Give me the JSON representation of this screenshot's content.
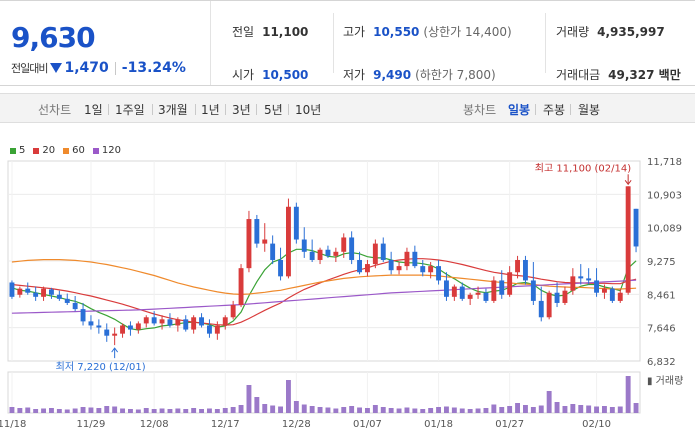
{
  "summary": {
    "price": "9,630",
    "change_label": "전일대비",
    "change_value": "1,470",
    "change_pct": "-13.24%",
    "prev_close_label": "전일",
    "prev_close": "11,100",
    "high_label": "고가",
    "high": "10,550",
    "high_note": "(상한가 14,400)",
    "volume_label": "거래량",
    "volume": "4,935,997",
    "open_label": "시가",
    "open": "10,500",
    "low_label": "저가",
    "low": "9,490",
    "low_note": "(하한가 7,800)",
    "amount_label": "거래대금",
    "amount": "49,327 백만"
  },
  "toolbar": {
    "line_label": "선차트",
    "periods": [
      "1일",
      "1주일",
      "3개월",
      "1년",
      "3년",
      "5년",
      "10년"
    ],
    "candle_label": "봉차트",
    "candle_periods": [
      "일봉",
      "주봉",
      "월봉"
    ],
    "active_candle": "일봉"
  },
  "legend": [
    {
      "label": "5",
      "color": "#3aa335"
    },
    {
      "label": "20",
      "color": "#d93b3b"
    },
    {
      "label": "60",
      "color": "#ef8a2c"
    },
    {
      "label": "120",
      "color": "#9b59c9"
    }
  ],
  "chart_data": {
    "type": "candlestick",
    "x_tick_labels": [
      "11/18",
      "11/29",
      "12/08",
      "12/17",
      "12/28",
      "01/07",
      "01/18",
      "01/27",
      "02/10"
    ],
    "y_ticks": [
      "11,718",
      "10,903",
      "10,089",
      "9,275",
      "8,461",
      "7,646",
      "6,832"
    ],
    "ylim": [
      6832,
      11718
    ],
    "up_color": "#d93b3b",
    "down_color": "#2a6fd6",
    "annotations": {
      "high": "최고 11,100 (02/14)",
      "low": "최저 7,220 (12/01)"
    },
    "volume_label": "거래량",
    "candles": [
      [
        8750,
        8800,
        8350,
        8400
      ],
      [
        8450,
        8650,
        8380,
        8600
      ],
      [
        8600,
        8750,
        8450,
        8500
      ],
      [
        8500,
        8650,
        8300,
        8400
      ],
      [
        8400,
        8650,
        8300,
        8600
      ],
      [
        8580,
        8620,
        8350,
        8450
      ],
      [
        8450,
        8550,
        8300,
        8350
      ],
      [
        8350,
        8480,
        8200,
        8250
      ],
      [
        8250,
        8420,
        8050,
        8100
      ],
      [
        8100,
        8250,
        7700,
        7800
      ],
      [
        7800,
        7950,
        7600,
        7700
      ],
      [
        7700,
        7850,
        7500,
        7650
      ],
      [
        7600,
        7750,
        7300,
        7450
      ],
      [
        7450,
        7650,
        7220,
        7500
      ],
      [
        7500,
        7750,
        7400,
        7700
      ],
      [
        7700,
        7800,
        7450,
        7600
      ],
      [
        7600,
        7800,
        7500,
        7750
      ],
      [
        7750,
        7950,
        7650,
        7900
      ],
      [
        7900,
        8050,
        7700,
        7750
      ],
      [
        7750,
        7950,
        7600,
        7850
      ],
      [
        7850,
        8000,
        7650,
        7700
      ],
      [
        7700,
        7900,
        7550,
        7850
      ],
      [
        7850,
        7950,
        7550,
        7600
      ],
      [
        7600,
        7950,
        7500,
        7900
      ],
      [
        7900,
        8000,
        7650,
        7700
      ],
      [
        7700,
        7850,
        7400,
        7500
      ],
      [
        7500,
        7800,
        7350,
        7700
      ],
      [
        7700,
        7950,
        7600,
        7900
      ],
      [
        7900,
        8300,
        7850,
        8200
      ],
      [
        8200,
        9200,
        8150,
        9100
      ],
      [
        9100,
        10500,
        9000,
        10300
      ],
      [
        10300,
        10400,
        9600,
        9700
      ],
      [
        9700,
        10200,
        9500,
        9800
      ],
      [
        9700,
        9900,
        9200,
        9300
      ],
      [
        9300,
        9600,
        8800,
        8900
      ],
      [
        8900,
        10800,
        8850,
        10600
      ],
      [
        10600,
        10700,
        9700,
        9800
      ],
      [
        9800,
        10100,
        9350,
        9500
      ],
      [
        9500,
        9800,
        9250,
        9300
      ],
      [
        9300,
        9600,
        9200,
        9550
      ],
      [
        9550,
        9650,
        9350,
        9400
      ],
      [
        9400,
        9600,
        9250,
        9500
      ],
      [
        9500,
        9950,
        9350,
        9850
      ],
      [
        9850,
        10000,
        9200,
        9300
      ],
      [
        9300,
        9500,
        8950,
        9000
      ],
      [
        9000,
        9300,
        8900,
        9200
      ],
      [
        9200,
        9800,
        9100,
        9700
      ],
      [
        9700,
        9850,
        9250,
        9300
      ],
      [
        9300,
        9500,
        8950,
        9050
      ],
      [
        9050,
        9250,
        8950,
        9150
      ],
      [
        9150,
        9600,
        9050,
        9500
      ],
      [
        9500,
        9650,
        9100,
        9150
      ],
      [
        9150,
        9300,
        8900,
        9000
      ],
      [
        9000,
        9250,
        8850,
        9150
      ],
      [
        9150,
        9300,
        8700,
        8800
      ],
      [
        8800,
        9000,
        8300,
        8400
      ],
      [
        8400,
        8700,
        8300,
        8650
      ],
      [
        8650,
        8750,
        8300,
        8350
      ],
      [
        8350,
        8500,
        8200,
        8450
      ],
      [
        8450,
        8650,
        8350,
        8500
      ],
      [
        8500,
        8600,
        8250,
        8300
      ],
      [
        8300,
        8900,
        8250,
        8800
      ],
      [
        8800,
        9050,
        8350,
        8450
      ],
      [
        8450,
        9150,
        8400,
        9000
      ],
      [
        9000,
        9400,
        8850,
        9300
      ],
      [
        9300,
        9400,
        8700,
        8800
      ],
      [
        8800,
        9250,
        8200,
        8300
      ],
      [
        8300,
        8650,
        7800,
        7900
      ],
      [
        7900,
        8550,
        7850,
        8500
      ],
      [
        8500,
        8750,
        8150,
        8250
      ],
      [
        8250,
        8650,
        8200,
        8550
      ],
      [
        8550,
        9100,
        8450,
        8900
      ],
      [
        8900,
        9200,
        8700,
        8850
      ],
      [
        8850,
        9100,
        8700,
        8800
      ],
      [
        8800,
        9100,
        8400,
        8500
      ],
      [
        8500,
        8700,
        8350,
        8600
      ],
      [
        8600,
        8650,
        8250,
        8300
      ],
      [
        8300,
        8600,
        8250,
        8500
      ],
      [
        8500,
        11100,
        8450,
        11100
      ],
      [
        10550,
        10550,
        9490,
        9630
      ]
    ],
    "ma_series": [
      {
        "label": "5",
        "color": "#3aa335",
        "values": [
          8620,
          8560,
          8540,
          8500,
          8460,
          8420,
          8380,
          8330,
          8290,
          8220,
          8110,
          8020,
          7940,
          7850,
          7730,
          7620,
          7590,
          7620,
          7640,
          7690,
          7710,
          7740,
          7770,
          7780,
          7760,
          7720,
          7660,
          7690,
          7810,
          8030,
          8430,
          8770,
          9060,
          9250,
          9320,
          9470,
          9560,
          9560,
          9530,
          9460,
          9390,
          9370,
          9450,
          9480,
          9450,
          9380,
          9350,
          9350,
          9300,
          9250,
          9230,
          9230,
          9210,
          9170,
          9080,
          8950,
          8840,
          8720,
          8610,
          8530,
          8500,
          8540,
          8560,
          8630,
          8730,
          8750,
          8700,
          8560,
          8470,
          8420,
          8440,
          8560,
          8660,
          8700,
          8700,
          8640,
          8600,
          8550,
          9100,
          9280
        ]
      },
      {
        "label": "20",
        "color": "#d93b3b",
        "values": [
          8700,
          8680,
          8660,
          8640,
          8620,
          8600,
          8570,
          8540,
          8500,
          8460,
          8420,
          8370,
          8320,
          8270,
          8220,
          8160,
          8100,
          8040,
          7980,
          7930,
          7880,
          7840,
          7810,
          7780,
          7760,
          7740,
          7720,
          7710,
          7720,
          7780,
          7870,
          7970,
          8070,
          8160,
          8250,
          8370,
          8480,
          8580,
          8660,
          8740,
          8810,
          8880,
          8950,
          9010,
          9060,
          9110,
          9170,
          9220,
          9270,
          9300,
          9320,
          9330,
          9330,
          9320,
          9300,
          9270,
          9230,
          9190,
          9140,
          9090,
          9040,
          9000,
          8970,
          8940,
          8920,
          8900,
          8870,
          8830,
          8800,
          8770,
          8750,
          8740,
          8740,
          8730,
          8730,
          8730,
          8720,
          8720,
          8790,
          8830
        ]
      },
      {
        "label": "60",
        "color": "#ef8a2c",
        "values": [
          9250,
          9270,
          9290,
          9300,
          9310,
          9310,
          9310,
          9300,
          9290,
          9270,
          9250,
          9220,
          9190,
          9150,
          9110,
          9070,
          9020,
          8970,
          8920,
          8860,
          8800,
          8740,
          8690,
          8640,
          8600,
          8560,
          8520,
          8490,
          8470,
          8460,
          8470,
          8490,
          8510,
          8540,
          8560,
          8600,
          8640,
          8680,
          8720,
          8760,
          8790,
          8820,
          8850,
          8870,
          8890,
          8900,
          8910,
          8920,
          8930,
          8930,
          8930,
          8930,
          8930,
          8920,
          8910,
          8890,
          8870,
          8850,
          8830,
          8810,
          8790,
          8770,
          8750,
          8740,
          8720,
          8710,
          8700,
          8680,
          8660,
          8650,
          8640,
          8630,
          8630,
          8620,
          8610,
          8600,
          8590,
          8590,
          8600,
          8610
        ]
      },
      {
        "label": "120",
        "color": "#9b59c9",
        "values": [
          8000,
          8005,
          8010,
          8015,
          8020,
          8025,
          8030,
          8035,
          8040,
          8045,
          8050,
          8055,
          8060,
          8065,
          8070,
          8075,
          8080,
          8090,
          8100,
          8110,
          8120,
          8130,
          8140,
          8150,
          8160,
          8170,
          8180,
          8190,
          8200,
          8210,
          8225,
          8240,
          8255,
          8270,
          8285,
          8300,
          8315,
          8330,
          8345,
          8360,
          8375,
          8390,
          8405,
          8420,
          8435,
          8450,
          8465,
          8480,
          8495,
          8505,
          8515,
          8525,
          8535,
          8545,
          8555,
          8565,
          8575,
          8585,
          8595,
          8605,
          8615,
          8625,
          8635,
          8645,
          8655,
          8665,
          8675,
          8685,
          8695,
          8705,
          8715,
          8725,
          8735,
          8745,
          8755,
          8765,
          8775,
          8785,
          8795,
          8805
        ]
      }
    ],
    "volumes": [
      60,
      50,
      55,
      40,
      45,
      50,
      40,
      35,
      45,
      60,
      55,
      50,
      70,
      65,
      45,
      40,
      35,
      50,
      40,
      45,
      40,
      45,
      40,
      50,
      40,
      45,
      40,
      50,
      60,
      80,
      280,
      160,
      90,
      75,
      65,
      330,
      120,
      85,
      70,
      60,
      55,
      45,
      60,
      70,
      55,
      50,
      80,
      60,
      50,
      45,
      55,
      45,
      40,
      50,
      60,
      65,
      55,
      45,
      40,
      45,
      50,
      85,
      60,
      70,
      100,
      80,
      60,
      75,
      220,
      110,
      70,
      90,
      80,
      75,
      65,
      70,
      60,
      65,
      370,
      100
    ]
  }
}
